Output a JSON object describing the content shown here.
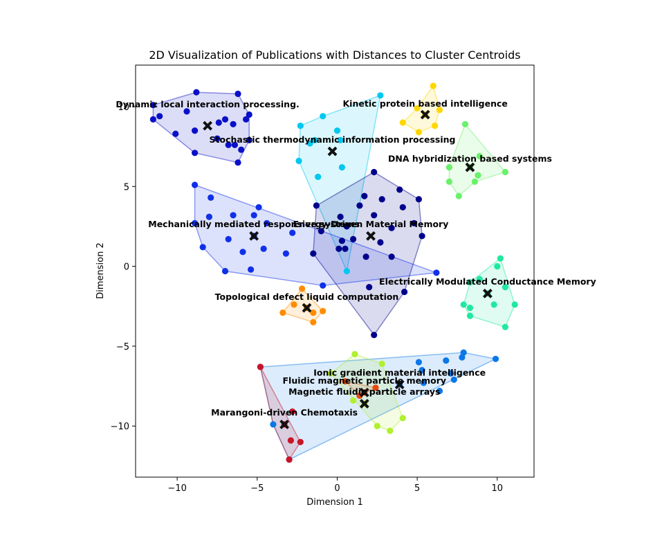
{
  "chart_data": {
    "type": "scatter",
    "title": "2D Visualization of Publications with Distances to Cluster Centroids",
    "xlabel": "Dimension 1",
    "ylabel": "Dimension 2",
    "xlim": [
      -12.6,
      12.3
    ],
    "ylim": [
      -13.2,
      12.6
    ],
    "xticks": [
      -10,
      -5,
      0,
      5,
      10
    ],
    "yticks": [
      -10,
      -5,
      0,
      5,
      10
    ],
    "xtick_labels": [
      "−10",
      "−5",
      "0",
      "5",
      "10"
    ],
    "ytick_labels": [
      "−10",
      "−5",
      "0",
      "5",
      "10"
    ],
    "grid": false,
    "series": [
      {
        "name": "Dynamic local interaction processing.",
        "color": "#0a10c8",
        "centroid": [
          -8.1,
          8.8
        ],
        "label_pos": [
          -8.1,
          9.95
        ],
        "points": [
          [
            -11.5,
            10.1
          ],
          [
            -11.5,
            9.2
          ],
          [
            -11.1,
            9.4
          ],
          [
            -10.1,
            8.3
          ],
          [
            -9.4,
            9.7
          ],
          [
            -8.8,
            10.9
          ],
          [
            -6.2,
            10.8
          ],
          [
            -5.5,
            9.5
          ],
          [
            -5.7,
            9.2
          ],
          [
            -6.5,
            8.9
          ],
          [
            -7.0,
            9.2
          ],
          [
            -7.4,
            9.0
          ],
          [
            -8.9,
            8.5
          ],
          [
            -8.9,
            7.1
          ],
          [
            -6.8,
            7.6
          ],
          [
            -6.4,
            7.6
          ],
          [
            -6.0,
            7.3
          ],
          [
            -5.5,
            7.9
          ],
          [
            -7.5,
            8.0
          ],
          [
            -6.2,
            6.5
          ]
        ],
        "hull": [
          [
            -11.5,
            10.1
          ],
          [
            -8.8,
            10.9
          ],
          [
            -6.2,
            10.8
          ],
          [
            -5.5,
            9.5
          ],
          [
            -5.5,
            7.9
          ],
          [
            -6.2,
            6.5
          ],
          [
            -8.9,
            7.1
          ],
          [
            -11.5,
            9.2
          ]
        ]
      },
      {
        "name": "Kinetic protein based intelligence",
        "color": "#ffd700",
        "centroid": [
          5.5,
          9.5
        ],
        "label_pos": [
          5.5,
          10.0
        ],
        "points": [
          [
            6.0,
            11.3
          ],
          [
            5.0,
            9.9
          ],
          [
            4.1,
            9.0
          ],
          [
            5.1,
            8.4
          ],
          [
            6.1,
            8.8
          ],
          [
            6.4,
            9.8
          ],
          [
            5.5,
            9.5
          ]
        ],
        "hull": [
          [
            6.0,
            11.3
          ],
          [
            6.4,
            9.8
          ],
          [
            6.1,
            8.8
          ],
          [
            5.1,
            8.4
          ],
          [
            4.1,
            9.0
          ],
          [
            5.0,
            9.9
          ]
        ]
      },
      {
        "name": "Stochastic thermodynamic information processing",
        "color": "#00c8f0",
        "centroid": [
          -0.3,
          7.2
        ],
        "label_pos": [
          -0.3,
          7.75
        ],
        "points": [
          [
            2.7,
            10.7
          ],
          [
            -0.9,
            9.4
          ],
          [
            -2.3,
            8.8
          ],
          [
            0.0,
            8.5
          ],
          [
            -1.4,
            7.9
          ],
          [
            -1.7,
            7.7
          ],
          [
            0.2,
            7.9
          ],
          [
            -2.4,
            6.6
          ],
          [
            -1.2,
            5.6
          ],
          [
            0.3,
            6.2
          ],
          [
            0.6,
            -0.3
          ]
        ],
        "hull": [
          [
            2.7,
            10.7
          ],
          [
            0.6,
            -0.3
          ],
          [
            -2.4,
            6.6
          ],
          [
            -2.3,
            8.8
          ],
          [
            -0.9,
            9.4
          ]
        ]
      },
      {
        "name": "DNA hybridization based systems",
        "color": "#6af06a",
        "centroid": [
          8.3,
          6.2
        ],
        "label_pos": [
          8.3,
          6.55
        ],
        "points": [
          [
            8.0,
            8.9
          ],
          [
            10.5,
            5.9
          ],
          [
            8.9,
            6.9
          ],
          [
            7.0,
            6.2
          ],
          [
            7.0,
            5.3
          ],
          [
            8.6,
            5.3
          ],
          [
            8.8,
            5.7
          ],
          [
            7.6,
            4.4
          ],
          [
            8.3,
            6.2
          ]
        ],
        "hull": [
          [
            8.0,
            8.9
          ],
          [
            10.5,
            5.9
          ],
          [
            8.6,
            5.3
          ],
          [
            7.6,
            4.4
          ],
          [
            7.0,
            5.3
          ],
          [
            7.0,
            6.2
          ]
        ]
      },
      {
        "name": "Energy-Driven Material Memory",
        "color": "#00008b",
        "centroid": [
          2.1,
          1.9
        ],
        "label_pos": [
          2.1,
          2.45
        ],
        "points": [
          [
            2.3,
            5.9
          ],
          [
            1.7,
            4.4
          ],
          [
            2.8,
            4.2
          ],
          [
            3.9,
            4.8
          ],
          [
            5.1,
            4.2
          ],
          [
            4.1,
            3.7
          ],
          [
            1.4,
            3.8
          ],
          [
            0.2,
            3.1
          ],
          [
            2.3,
            3.2
          ],
          [
            0.6,
            2.5
          ],
          [
            -1.3,
            3.8
          ],
          [
            3.4,
            2.4
          ],
          [
            4.8,
            2.7
          ],
          [
            5.3,
            1.9
          ],
          [
            0.3,
            1.6
          ],
          [
            2.7,
            1.5
          ],
          [
            1.0,
            1.7
          ],
          [
            0.5,
            1.1
          ],
          [
            0.1,
            1.1
          ],
          [
            -1.0,
            2.2
          ],
          [
            -1.5,
            0.8
          ],
          [
            1.8,
            0.6
          ],
          [
            3.4,
            0.6
          ],
          [
            4.2,
            -1.6
          ],
          [
            2.0,
            -1.3
          ],
          [
            2.3,
            -4.3
          ]
        ],
        "hull": [
          [
            2.3,
            5.9
          ],
          [
            5.1,
            4.2
          ],
          [
            5.3,
            1.9
          ],
          [
            4.2,
            -1.6
          ],
          [
            2.3,
            -4.3
          ],
          [
            -1.5,
            0.8
          ],
          [
            -1.3,
            3.8
          ]
        ]
      },
      {
        "name": "Mechanically mediated responsive systems",
        "color": "#1030e8",
        "centroid": [
          -5.2,
          1.9
        ],
        "label_pos": [
          -5.2,
          2.45
        ],
        "points": [
          [
            -8.9,
            5.1
          ],
          [
            -7.9,
            4.3
          ],
          [
            -8.0,
            3.1
          ],
          [
            -8.9,
            2.7
          ],
          [
            -6.5,
            3.2
          ],
          [
            -5.2,
            3.2
          ],
          [
            -4.9,
            3.7
          ],
          [
            -4.4,
            2.7
          ],
          [
            -2.8,
            2.1
          ],
          [
            -6.8,
            1.7
          ],
          [
            -8.4,
            1.2
          ],
          [
            -4.6,
            1.1
          ],
          [
            -5.9,
            0.9
          ],
          [
            -3.2,
            0.8
          ],
          [
            -7.0,
            -0.3
          ],
          [
            -5.4,
            -0.2
          ],
          [
            -0.9,
            -1.2
          ],
          [
            6.2,
            -0.4
          ],
          [
            -5.2,
            1.9
          ]
        ],
        "hull": [
          [
            -8.9,
            5.1
          ],
          [
            6.2,
            -0.4
          ],
          [
            -0.9,
            -1.2
          ],
          [
            -7.0,
            -0.3
          ],
          [
            -8.4,
            1.2
          ],
          [
            -8.9,
            2.7
          ]
        ]
      },
      {
        "name": "Electrically Modulated Conductance Memory",
        "color": "#20e8a0",
        "centroid": [
          9.4,
          -1.7
        ],
        "label_pos": [
          9.4,
          -1.15
        ],
        "points": [
          [
            10.2,
            0.5
          ],
          [
            10.0,
            0.0
          ],
          [
            8.9,
            -0.8
          ],
          [
            8.3,
            -1.0
          ],
          [
            10.5,
            -1.3
          ],
          [
            11.1,
            -2.4
          ],
          [
            9.8,
            -2.4
          ],
          [
            7.9,
            -2.4
          ],
          [
            8.3,
            -2.6
          ],
          [
            8.3,
            -3.1
          ],
          [
            10.5,
            -3.8
          ],
          [
            9.4,
            -1.7
          ]
        ],
        "hull": [
          [
            10.2,
            0.5
          ],
          [
            11.1,
            -2.4
          ],
          [
            10.5,
            -3.8
          ],
          [
            8.3,
            -3.1
          ],
          [
            7.9,
            -2.4
          ],
          [
            8.3,
            -1.0
          ]
        ]
      },
      {
        "name": "Topological defect liquid computation",
        "color": "#ff8c00",
        "centroid": [
          -1.9,
          -2.6
        ],
        "label_pos": [
          -1.9,
          -2.1
        ],
        "points": [
          [
            -2.2,
            -1.4
          ],
          [
            -2.7,
            -2.4
          ],
          [
            -3.4,
            -2.9
          ],
          [
            -1.5,
            -2.9
          ],
          [
            -0.9,
            -2.8
          ],
          [
            -1.5,
            -3.5
          ],
          [
            -1.9,
            -2.6
          ]
        ],
        "hull": [
          [
            -2.2,
            -1.4
          ],
          [
            -0.9,
            -2.8
          ],
          [
            -1.5,
            -3.5
          ],
          [
            -3.4,
            -2.9
          ]
        ]
      },
      {
        "name": "Ionic gradient material intelligence",
        "color": "#0a78e8",
        "centroid": [
          3.9,
          -7.4
        ],
        "label_pos": [
          3.9,
          -6.85
        ],
        "points": [
          [
            -4.8,
            -6.3
          ],
          [
            7.9,
            -5.4
          ],
          [
            7.8,
            -5.7
          ],
          [
            9.9,
            -5.8
          ],
          [
            6.8,
            -5.9
          ],
          [
            5.1,
            -6.0
          ],
          [
            5.3,
            -6.5
          ],
          [
            7.1,
            -6.7
          ],
          [
            7.3,
            -7.1
          ],
          [
            5.4,
            -7.3
          ],
          [
            6.4,
            -7.8
          ],
          [
            -4.0,
            -9.9
          ],
          [
            -3.0,
            -12.1
          ],
          [
            3.9,
            -7.4
          ]
        ],
        "hull": [
          [
            -4.8,
            -6.3
          ],
          [
            7.9,
            -5.4
          ],
          [
            9.9,
            -5.8
          ],
          [
            -3.0,
            -12.1
          ],
          [
            -4.0,
            -9.9
          ]
        ]
      },
      {
        "name": "Fluidic magnetic particle memory",
        "color": "#e84810",
        "centroid": [
          1.7,
          -7.9
        ],
        "label_pos": [
          1.7,
          -7.35
        ],
        "points": [
          [
            2.4,
            -7.6
          ],
          [
            0.5,
            -7.2
          ],
          [
            1.4,
            -8.1
          ],
          [
            1.7,
            -7.9
          ]
        ],
        "hull": [
          [
            0.5,
            -7.2
          ],
          [
            2.4,
            -7.6
          ],
          [
            1.4,
            -8.1
          ]
        ]
      },
      {
        "name": "Magnetic fluidic particle arrays",
        "color": "#b0f030",
        "centroid": [
          1.7,
          -8.6
        ],
        "label_pos": [
          1.7,
          -8.05
        ],
        "points": [
          [
            1.1,
            -5.5
          ],
          [
            2.8,
            -6.1
          ],
          [
            -0.4,
            -6.7
          ],
          [
            1.0,
            -8.4
          ],
          [
            4.1,
            -9.5
          ],
          [
            3.3,
            -10.3
          ],
          [
            2.5,
            -10.0
          ],
          [
            1.7,
            -8.6
          ]
        ],
        "hull": [
          [
            1.1,
            -5.5
          ],
          [
            2.8,
            -6.1
          ],
          [
            4.1,
            -9.5
          ],
          [
            3.3,
            -10.3
          ],
          [
            2.5,
            -10.0
          ],
          [
            -0.4,
            -6.7
          ]
        ]
      },
      {
        "name": "Marangoni-driven Chemotaxis",
        "color": "#c81428",
        "centroid": [
          -3.3,
          -9.9
        ],
        "label_pos": [
          -3.3,
          -9.35
        ],
        "points": [
          [
            -2.8,
            -9.1
          ],
          [
            -2.9,
            -10.9
          ],
          [
            -2.3,
            -11.0
          ],
          [
            -4.8,
            -6.3
          ],
          [
            -3.0,
            -12.1
          ],
          [
            -3.3,
            -9.9
          ]
        ],
        "hull": [
          [
            -4.8,
            -6.3
          ],
          [
            -2.3,
            -11.0
          ],
          [
            -3.0,
            -12.1
          ],
          [
            -4.0,
            -9.9
          ]
        ]
      }
    ]
  }
}
